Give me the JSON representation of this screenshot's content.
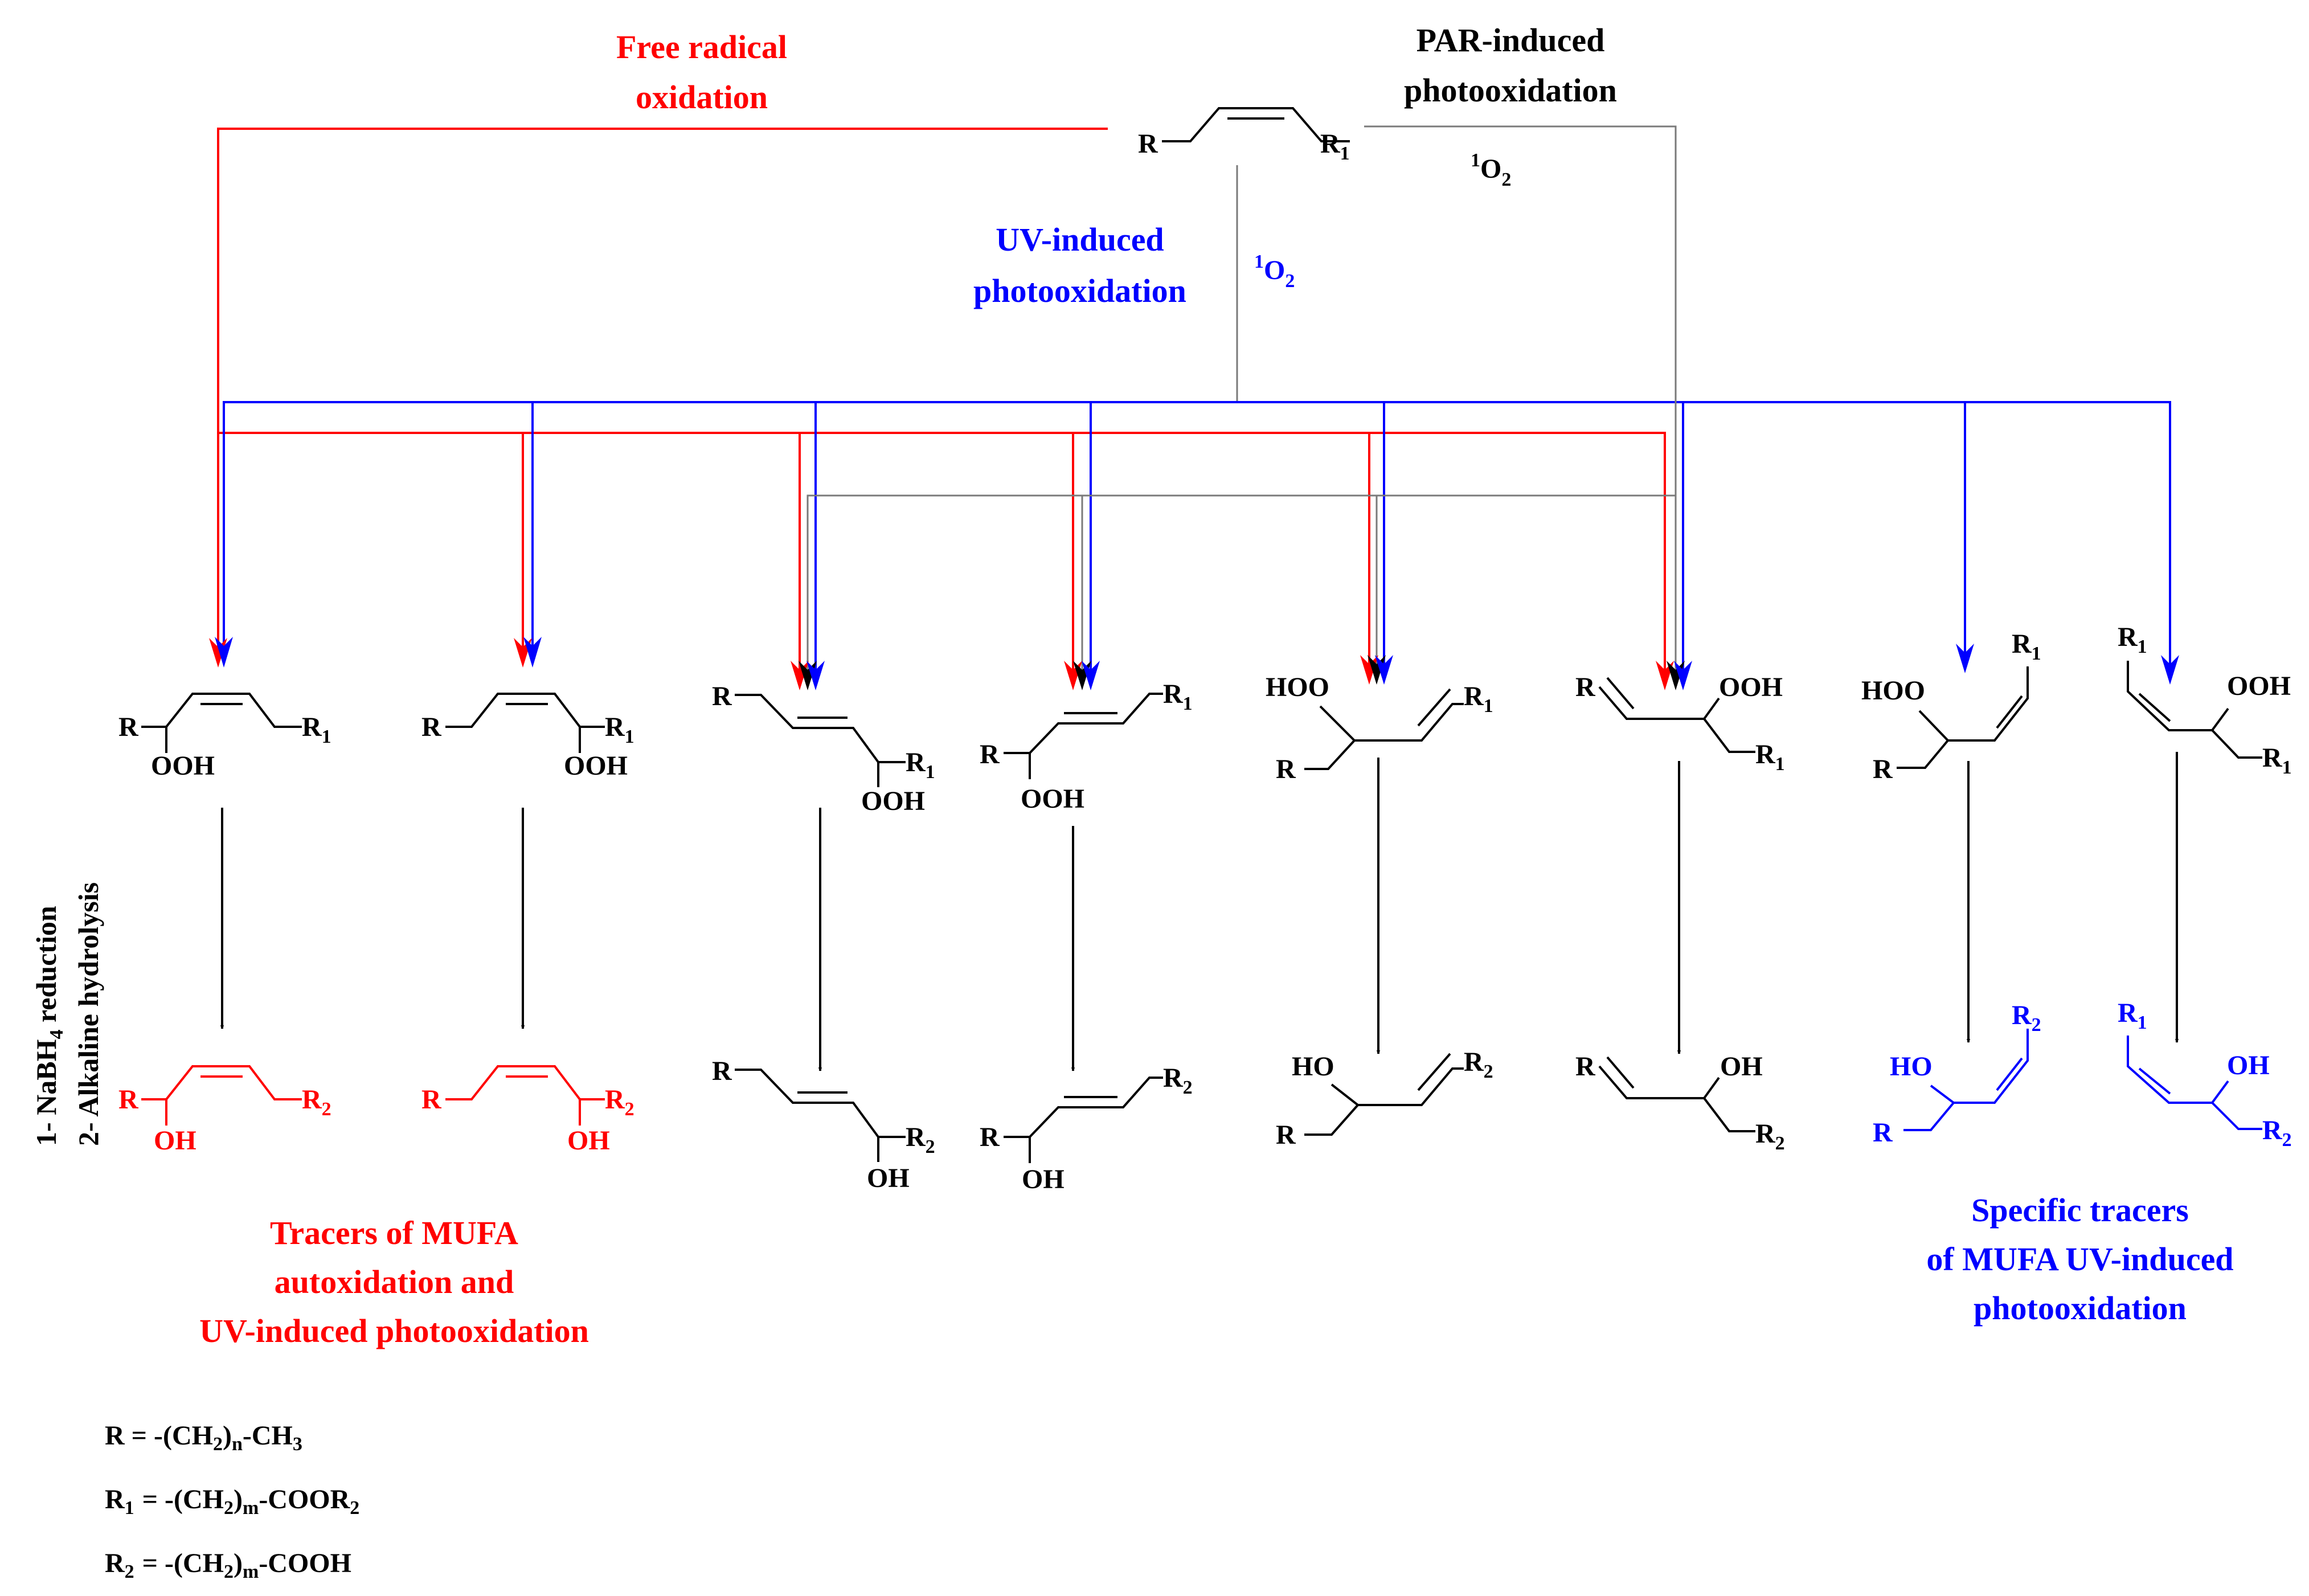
{
  "colors": {
    "red": "#ff0000",
    "blue": "#0000ff",
    "black": "#000000",
    "gray": "#7a7a7a"
  },
  "pathways": {
    "free_radical": [
      "Free radical",
      "oxidation"
    ],
    "par": [
      "PAR-induced",
      "photooxidation"
    ],
    "uv": [
      "UV-induced",
      "photooxidation"
    ],
    "singlet_oxygen": {
      "sup": "1",
      "main": "O",
      "sub": "2"
    }
  },
  "side_label": {
    "line1": "1- NaBH",
    "line1_sub": "4",
    "line1_tail": " reduction",
    "line2": "2- Alkaline hydrolysis"
  },
  "atoms": {
    "R": "R",
    "R1": "R",
    "R1_sub": "1",
    "R2_sub": "2",
    "OOH": "OOH",
    "HOO": "HOO",
    "OH": "OH",
    "HO": "HO"
  },
  "captions": {
    "red": [
      "Tracers of MUFA",
      "autoxidation and",
      "UV-induced photooxidation"
    ],
    "blue": [
      "Specific tracers",
      "of MUFA UV-induced",
      "photooxidation"
    ]
  },
  "legend": [
    {
      "sym": "R",
      "sym_sub": "",
      "eq": " =  -(CH",
      "a_sub": "2",
      "b": ")",
      "b_sub": "n",
      "tail": "-CH",
      "tail_sub": "3"
    },
    {
      "sym": "R",
      "sym_sub": "1",
      "eq": "=  -(CH",
      "a_sub": "2",
      "b": ")",
      "b_sub": "m",
      "tail": "-COOR",
      "tail_sub": "2"
    },
    {
      "sym": "R",
      "sym_sub": "2",
      "eq": "=  -(CH",
      "a_sub": "2",
      "b": ")",
      "b_sub": "m",
      "tail": "-COOH",
      "tail_sub": ""
    }
  ]
}
